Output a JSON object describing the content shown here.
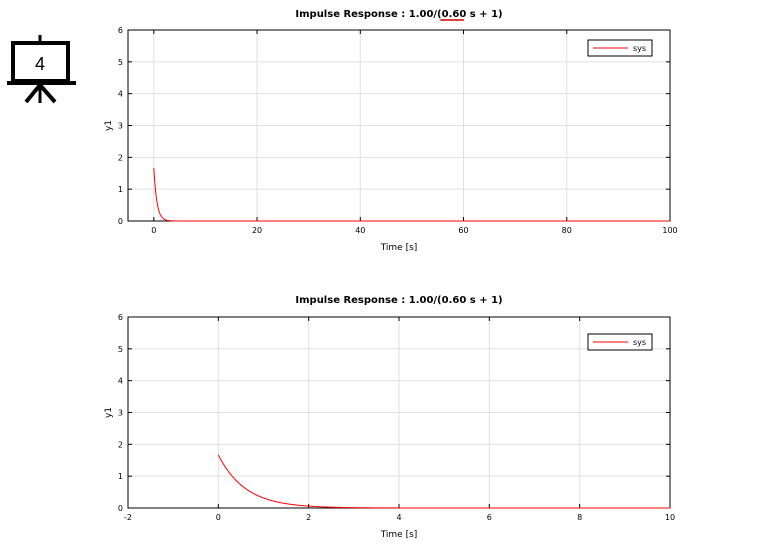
{
  "slide_icon": {
    "icon": "presentation-board-icon",
    "number": "4"
  },
  "chart_data": [
    {
      "type": "line",
      "title": "Impulse Response : 1.00/(0.60 s + 1)",
      "title_underlined": "0.60",
      "xlabel": "Time [s]",
      "ylabel": "y1",
      "xlim": [
        -5,
        100
      ],
      "ylim": [
        0,
        6
      ],
      "xticks": [
        0,
        20,
        40,
        60,
        80,
        100
      ],
      "yticks": [
        0,
        1,
        2,
        3,
        4,
        5,
        6
      ],
      "grid": true,
      "legend": "top-right",
      "series": [
        {
          "name": "sys",
          "color": "#ff0000",
          "gain": 1.6667,
          "tau": 0.6,
          "t_start": 0,
          "t_end": 100
        }
      ]
    },
    {
      "type": "line",
      "title": "Impulse Response : 1.00/(0.60 s + 1)",
      "xlabel": "Time [s]",
      "ylabel": "y1",
      "xlim": [
        -2,
        10
      ],
      "ylim": [
        0,
        6
      ],
      "xticks": [
        -2,
        0,
        2,
        4,
        6,
        8,
        10
      ],
      "yticks": [
        0,
        1,
        2,
        3,
        4,
        5,
        6
      ],
      "grid": true,
      "legend": "top-right",
      "series": [
        {
          "name": "sys",
          "color": "#ff0000",
          "gain": 1.6667,
          "tau": 0.6,
          "t_start": 0,
          "t_end": 10
        }
      ]
    }
  ]
}
